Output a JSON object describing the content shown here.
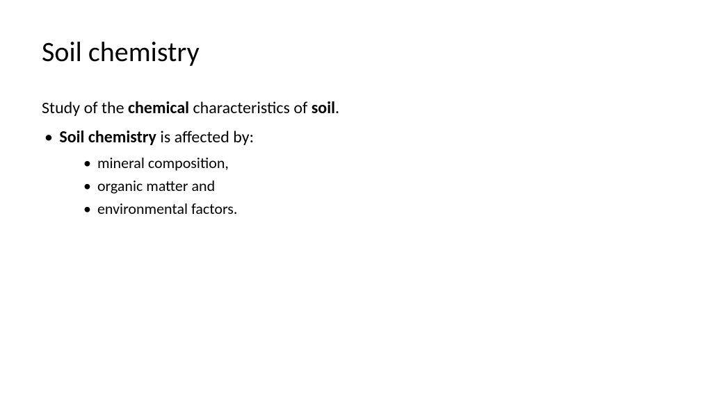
{
  "slide": {
    "title": "Soil chemistry",
    "intro": {
      "part1": "Study of the ",
      "bold1": "chemical",
      "part2": " characteristics of ",
      "bold2": "soil",
      "part3": "."
    },
    "bullet1": {
      "bold": "Soil chemistry",
      "rest": " is affected by:"
    },
    "sub_bullets": [
      "mineral composition,",
      "organic matter and",
      "environmental factors."
    ]
  },
  "style": {
    "background_color": "#ffffff",
    "text_color": "#000000",
    "title_fontsize": 40,
    "body_fontsize": 24,
    "sub_fontsize": 22,
    "font_family": "Calibri"
  }
}
